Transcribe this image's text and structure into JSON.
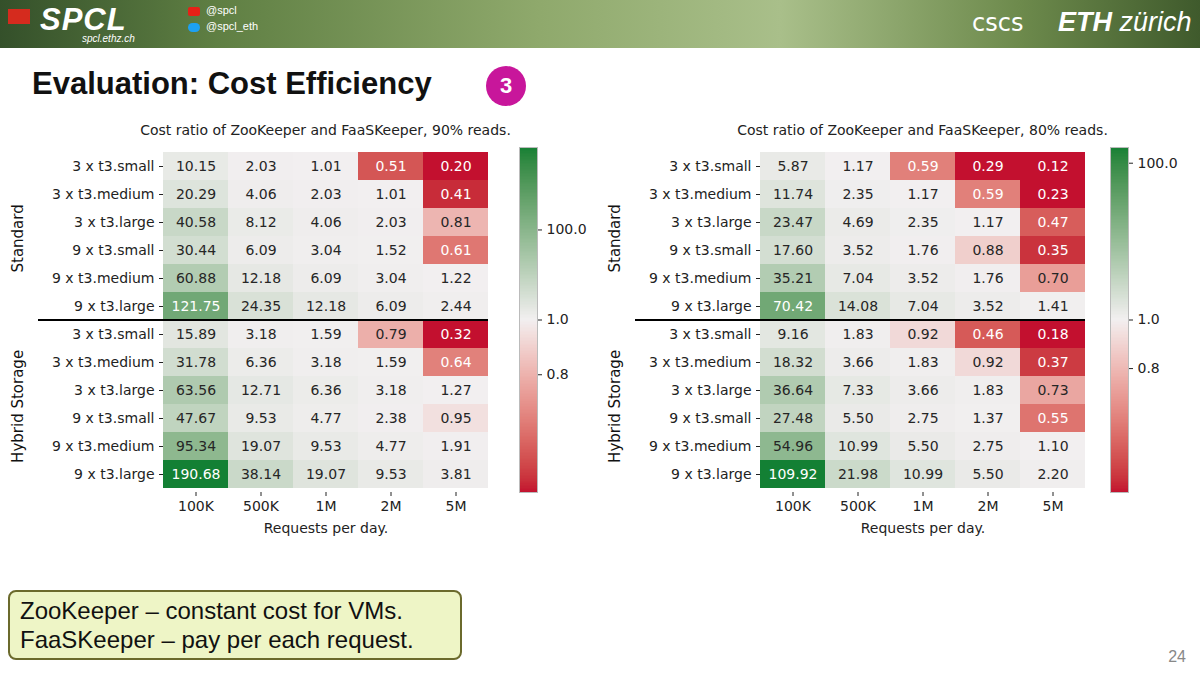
{
  "slide": {
    "header": {
      "logo": "SPCL",
      "site": "spcl.ethz.ch",
      "handles": [
        "@spcl",
        "@spcl_eth"
      ],
      "partners": [
        "cscs",
        "ETH zürich"
      ]
    },
    "title": "Evaluation: Cost Efficiency",
    "badge": 3,
    "note": [
      "ZooKeeper – constant cost for VMs.",
      "FaaSKeeper – pay per each request."
    ],
    "page": 24
  },
  "chart_data": [
    {
      "type": "heatmap",
      "title": "Cost ratio of ZooKeeper and FaaSKeeper, 90% reads.",
      "x_label": "Requests per day.",
      "x": [
        "100K",
        "500K",
        "1M",
        "2M",
        "5M"
      ],
      "y": [
        "3 x t3.small",
        "3 x t3.medium",
        "3 x t3.large",
        "9 x t3.small",
        "9 x t3.medium",
        "9 x t3.large",
        "3 x t3.small",
        "3 x t3.medium",
        "3 x t3.large",
        "9 x t3.small",
        "9 x t3.medium",
        "9 x t3.large"
      ],
      "row_groups": [
        "Standard",
        "Standard",
        "Standard",
        "Standard",
        "Standard",
        "Standard",
        "Hybrid Storage",
        "Hybrid Storage",
        "Hybrid Storage",
        "Hybrid Storage",
        "Hybrid Storage",
        "Hybrid Storage"
      ],
      "values": [
        [
          10.15,
          2.03,
          1.01,
          0.51,
          0.2
        ],
        [
          20.29,
          4.06,
          2.03,
          1.01,
          0.41
        ],
        [
          40.58,
          8.12,
          4.06,
          2.03,
          0.81
        ],
        [
          30.44,
          6.09,
          3.04,
          1.52,
          0.61
        ],
        [
          60.88,
          12.18,
          6.09,
          3.04,
          1.22
        ],
        [
          121.75,
          24.35,
          12.18,
          6.09,
          2.44
        ],
        [
          15.89,
          3.18,
          1.59,
          0.79,
          0.32
        ],
        [
          31.78,
          6.36,
          3.18,
          1.59,
          0.64
        ],
        [
          63.56,
          12.71,
          6.36,
          3.18,
          1.27
        ],
        [
          47.67,
          9.53,
          4.77,
          2.38,
          0.95
        ],
        [
          95.34,
          19.07,
          9.53,
          4.77,
          1.91
        ],
        [
          190.68,
          38.14,
          19.07,
          9.53,
          3.81
        ]
      ],
      "value_labels": [
        [
          "10.15",
          "2.03",
          "1.01",
          "0.51",
          "0.20"
        ],
        [
          "20.29",
          "4.06",
          "2.03",
          "1.01",
          "0.41"
        ],
        [
          "40.58",
          "8.12",
          "4.06",
          "2.03",
          "0.81"
        ],
        [
          "30.44",
          "6.09",
          "3.04",
          "1.52",
          "0.61"
        ],
        [
          "60.88",
          "12.18",
          "6.09",
          "3.04",
          "1.22"
        ],
        [
          "121.75",
          "24.35",
          "12.18",
          "6.09",
          "2.44"
        ],
        [
          "15.89",
          "3.18",
          "1.59",
          "0.79",
          "0.32"
        ],
        [
          "31.78",
          "6.36",
          "3.18",
          "1.59",
          "0.64"
        ],
        [
          "63.56",
          "12.71",
          "6.36",
          "3.18",
          "1.27"
        ],
        [
          "47.67",
          "9.53",
          "4.77",
          "2.38",
          "0.95"
        ],
        [
          "95.34",
          "19.07",
          "9.53",
          "4.77",
          "1.91"
        ],
        [
          "190.68",
          "38.14",
          "19.07",
          "9.53",
          "3.81"
        ]
      ],
      "data_labels": true,
      "colorbar": {
        "lim": [
          0.37,
          190.68
        ],
        "center": 1,
        "ticks": [
          {
            "value": 100,
            "label": "100.0"
          },
          {
            "value": 1,
            "label": "1.0"
          },
          0.8
        ],
        "colors": [
          "#c3102f",
          "#f2eff0",
          "#138034"
        ]
      }
    },
    {
      "type": "heatmap",
      "title": "Cost ratio of ZooKeeper and FaaSKeeper, 80% reads.",
      "x_label": "Requests per day.",
      "x": [
        "100K",
        "500K",
        "1M",
        "2M",
        "5M"
      ],
      "y": [
        "3 x t3.small",
        "3 x t3.medium",
        "3 x t3.large",
        "9 x t3.small",
        "9 x t3.medium",
        "9 x t3.large",
        "3 x t3.small",
        "3 x t3.medium",
        "3 x t3.large",
        "9 x t3.small",
        "9 x t3.medium",
        "9 x t3.large"
      ],
      "row_groups": [
        "Standard",
        "Standard",
        "Standard",
        "Standard",
        "Standard",
        "Standard",
        "Hybrid Storage",
        "Hybrid Storage",
        "Hybrid Storage",
        "Hybrid Storage",
        "Hybrid Storage",
        "Hybrid Storage"
      ],
      "values": [
        [
          5.87,
          1.17,
          0.59,
          0.29,
          0.12
        ],
        [
          11.74,
          2.35,
          1.17,
          0.59,
          0.23
        ],
        [
          23.47,
          4.69,
          2.35,
          1.17,
          0.47
        ],
        [
          17.6,
          3.52,
          1.76,
          0.88,
          0.35
        ],
        [
          35.21,
          7.04,
          3.52,
          1.76,
          0.7
        ],
        [
          70.42,
          14.08,
          7.04,
          3.52,
          1.41
        ],
        [
          9.16,
          1.83,
          0.92,
          0.46,
          0.18
        ],
        [
          18.32,
          3.66,
          1.83,
          0.92,
          0.37
        ],
        [
          36.64,
          7.33,
          3.66,
          1.83,
          0.73
        ],
        [
          27.48,
          5.5,
          2.75,
          1.37,
          0.55
        ],
        [
          54.96,
          10.99,
          5.5,
          2.75,
          1.1
        ],
        [
          109.92,
          21.98,
          10.99,
          5.5,
          2.2
        ]
      ],
      "value_labels": [
        [
          "5.87",
          "1.17",
          "0.59",
          "0.29",
          "0.12"
        ],
        [
          "11.74",
          "2.35",
          "1.17",
          "0.59",
          "0.23"
        ],
        [
          "23.47",
          "4.69",
          "2.35",
          "1.17",
          "0.47"
        ],
        [
          "17.60",
          "3.52",
          "1.76",
          "0.88",
          "0.35"
        ],
        [
          "35.21",
          "7.04",
          "3.52",
          "1.76",
          "0.70"
        ],
        [
          "70.42",
          "14.08",
          "7.04",
          "3.52",
          "1.41"
        ],
        [
          "9.16",
          "1.83",
          "0.92",
          "0.46",
          "0.18"
        ],
        [
          "18.32",
          "3.66",
          "1.83",
          "0.92",
          "0.37"
        ],
        [
          "36.64",
          "7.33",
          "3.66",
          "1.83",
          "0.73"
        ],
        [
          "27.48",
          "5.50",
          "2.75",
          "1.37",
          "0.55"
        ],
        [
          "54.96",
          "10.99",
          "5.50",
          "2.75",
          "1.10"
        ],
        [
          "109.92",
          "21.98",
          "10.99",
          "5.50",
          "2.20"
        ]
      ],
      "data_labels": true,
      "colorbar": {
        "lim": [
          0.29,
          109.92
        ],
        "center": 1,
        "ticks": [
          {
            "value": 100,
            "label": "100.0"
          },
          {
            "value": 1,
            "label": "1.0"
          },
          0.8
        ],
        "colors": [
          "#c3102f",
          "#f2eff0",
          "#138034"
        ]
      }
    }
  ]
}
